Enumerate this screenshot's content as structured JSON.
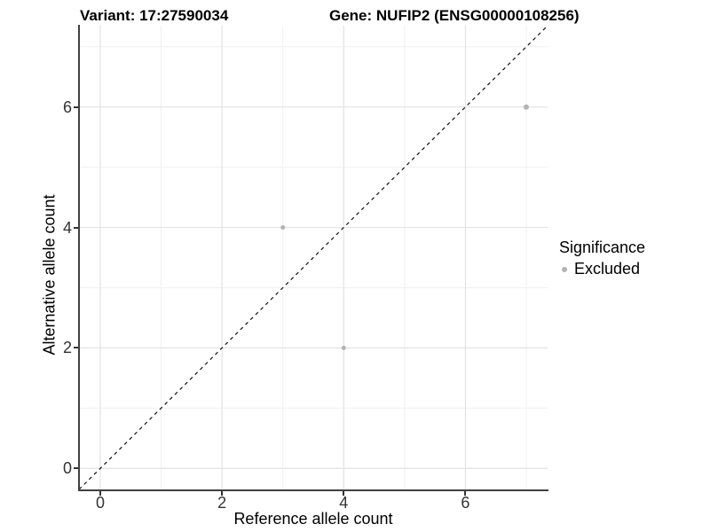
{
  "chart_data": {
    "type": "scatter",
    "titles": {
      "left": "Variant: 17:27590034",
      "right": "Gene: NUFIP2 (ENSG00000108256)"
    },
    "xlabel": "Reference allele count",
    "ylabel": "Alternative allele count",
    "xlim": [
      -0.35,
      7.35
    ],
    "ylim": [
      -0.35,
      7.35
    ],
    "x_major_ticks": [
      0,
      2,
      4,
      6
    ],
    "y_major_ticks": [
      0,
      2,
      4,
      6
    ],
    "x_minor_gridlines": [
      1,
      3,
      5,
      7
    ],
    "y_minor_gridlines": [
      1,
      3,
      5,
      7
    ],
    "grid": true,
    "points": [
      {
        "x": 3,
        "y": 4,
        "r": 2.5,
        "significance": "Excluded"
      },
      {
        "x": 4,
        "y": 2,
        "r": 2.5,
        "significance": "Excluded"
      },
      {
        "x": 7,
        "y": 6,
        "r": 3,
        "significance": "Excluded"
      }
    ],
    "identity_line": {
      "style": "dashed",
      "equation": "y = x",
      "color": "#111111"
    },
    "colors": {
      "point": "#b3b3b3",
      "grid_major": "#e3e3e3",
      "grid_minor": "#f0f0f0",
      "axis_line": "#404040",
      "tick": "#333333"
    },
    "legend": {
      "title": "Significance",
      "position": "right",
      "items": [
        {
          "label": "Excluded",
          "color": "#b3b3b3"
        }
      ]
    }
  }
}
